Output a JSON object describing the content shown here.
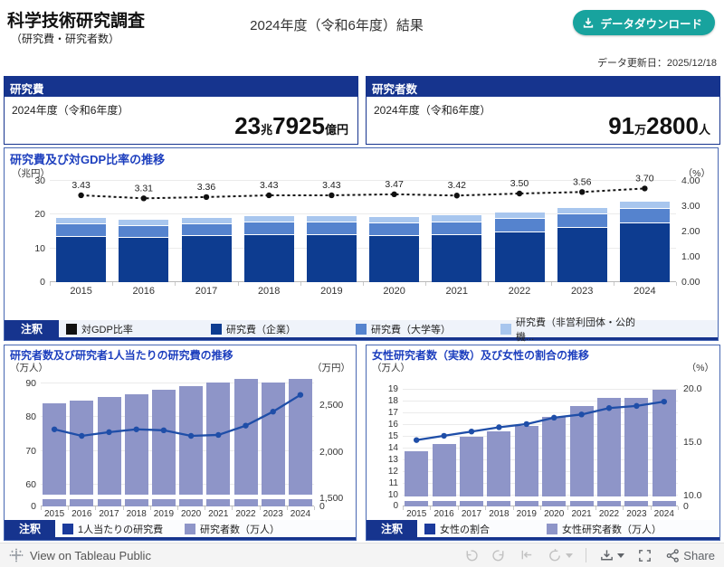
{
  "header": {
    "title": "科学技術研究調査",
    "subtitle": "（研究費・研究者数）",
    "period_heading": "2024年度（令和6年度）結果",
    "download_button": "データダウンロード",
    "updated": "データ更新日：2025/12/18",
    "accent_teal": "#18A39E"
  },
  "kpi": {
    "cost": {
      "header": "研究費",
      "period": "2024年度（令和6年度）",
      "n1": "23",
      "u1": "兆",
      "n2": "7925",
      "u2": "億円"
    },
    "researchers": {
      "header": "研究者数",
      "period": "2024年度（令和6年度）",
      "n1": "91",
      "u1": "万",
      "n2": "2800",
      "u2": "人"
    }
  },
  "chart_data": [
    {
      "type": "stacked-bar+line",
      "title": "研究費及び対GDP比率の推移",
      "legend_tab": "注釈",
      "categories": [
        "2015",
        "2016",
        "2017",
        "2018",
        "2019",
        "2020",
        "2021",
        "2022",
        "2023",
        "2024"
      ],
      "left_axis": {
        "unit": "（兆円）",
        "ticks": [
          "0",
          "10",
          "20",
          "30"
        ],
        "max": 30
      },
      "right_axis": {
        "unit": "（%）",
        "ticks": [
          "0.00",
          "1.00",
          "2.00",
          "3.00",
          "4.00"
        ],
        "max": 4
      },
      "series": [
        {
          "name": "研究費（企業）",
          "color": "#0D3C90",
          "values": [
            13.7,
            13.3,
            13.8,
            14.2,
            14.2,
            13.9,
            14.2,
            15.1,
            16.4,
            17.8
          ]
        },
        {
          "name": "研究費（大学等）",
          "color": "#5583CE",
          "values": [
            3.6,
            3.6,
            3.7,
            3.7,
            3.7,
            3.8,
            3.8,
            3.9,
            4.0,
            4.1
          ]
        },
        {
          "name": "研究費（非営利団体・公的機...",
          "color": "#A8C6EE",
          "values": [
            1.6,
            1.5,
            1.6,
            1.6,
            1.7,
            1.6,
            1.7,
            1.7,
            1.7,
            1.9
          ]
        }
      ],
      "line": {
        "name": "対GDP比率",
        "color": "#111111",
        "dashed": true,
        "labels": true,
        "values": [
          3.43,
          3.31,
          3.36,
          3.43,
          3.43,
          3.47,
          3.42,
          3.5,
          3.56,
          3.7
        ]
      },
      "legend": [
        {
          "label": "対GDP比率",
          "color": "#111111"
        },
        {
          "label": "研究費（企業）",
          "color": "#0D3C90"
        },
        {
          "label": "研究費（大学等）",
          "color": "#5583CE"
        },
        {
          "label": "研究費（非営利団体・公的機...",
          "color": "#A8C6EE"
        }
      ]
    },
    {
      "type": "bar+line",
      "title": "研究者数及び研究者1人当たりの研究費の推移",
      "legend_tab": "注釈",
      "categories": [
        "2015",
        "2016",
        "2017",
        "2018",
        "2019",
        "2020",
        "2021",
        "2022",
        "2023",
        "2024"
      ],
      "left_axis": {
        "unit": "（万人）",
        "ticks": [
          "0",
          "60",
          "70",
          "80",
          "90"
        ],
        "axis_break": true
      },
      "right_axis": {
        "unit": "（万円）",
        "ticks": [
          "0",
          "1,500",
          "2,000",
          "2,500"
        ]
      },
      "bars": {
        "name": "研究者数（万人）",
        "color": "#8E95C8",
        "values": [
          84.1,
          85.0,
          86.0,
          86.9,
          88.0,
          89.2,
          90.2,
          91.3,
          90.2,
          91.3
        ]
      },
      "line": {
        "name": "1人当たりの研究費",
        "color": "#1F4EA8",
        "dashed": false,
        "labels": false,
        "values": [
          2240,
          2170,
          2210,
          2240,
          2230,
          2170,
          2180,
          2280,
          2430,
          2610
        ]
      },
      "legend": [
        {
          "label": "1人当たりの研究費",
          "color": "#1A3A9C"
        },
        {
          "label": "研究者数（万人）",
          "color": "#8E95C8"
        }
      ]
    },
    {
      "type": "bar+line",
      "title": "女性研究者数（実数）及び女性の割合の推移",
      "legend_tab": "注釈",
      "categories": [
        "2015",
        "2016",
        "2017",
        "2018",
        "2019",
        "2020",
        "2021",
        "2022",
        "2023",
        "2024"
      ],
      "left_axis": {
        "unit": "（万人）",
        "ticks": [
          "0",
          "10",
          "11",
          "12",
          "13",
          "14",
          "15",
          "16",
          "17",
          "18",
          "19"
        ],
        "axis_break": true
      },
      "right_axis": {
        "unit": "（%）",
        "ticks": [
          "0",
          "10.0",
          "15.0",
          "20.0"
        ]
      },
      "bars": {
        "name": "女性研究者数（万人）",
        "color": "#8E95C8",
        "values": [
          13.8,
          14.4,
          15.0,
          15.5,
          15.9,
          16.7,
          17.6,
          18.3,
          18.3,
          19.0
        ]
      },
      "line": {
        "name": "女性の割合",
        "color": "#1F4EA8",
        "dashed": false,
        "labels": false,
        "values": [
          15.2,
          15.6,
          16.0,
          16.4,
          16.7,
          17.3,
          17.6,
          18.2,
          18.4,
          18.8
        ]
      },
      "legend": [
        {
          "label": "女性の割合",
          "color": "#1A3A9C"
        },
        {
          "label": "女性研究者数（万人）",
          "color": "#8E95C8"
        }
      ]
    }
  ],
  "footer": {
    "view_link": "View on Tableau Public",
    "share_label": "Share",
    "icons": [
      "tableau-logo-icon",
      "undo-icon",
      "redo-icon",
      "reset-icon",
      "refresh-icon",
      "download-icon",
      "fullscreen-icon",
      "share-icon"
    ]
  }
}
